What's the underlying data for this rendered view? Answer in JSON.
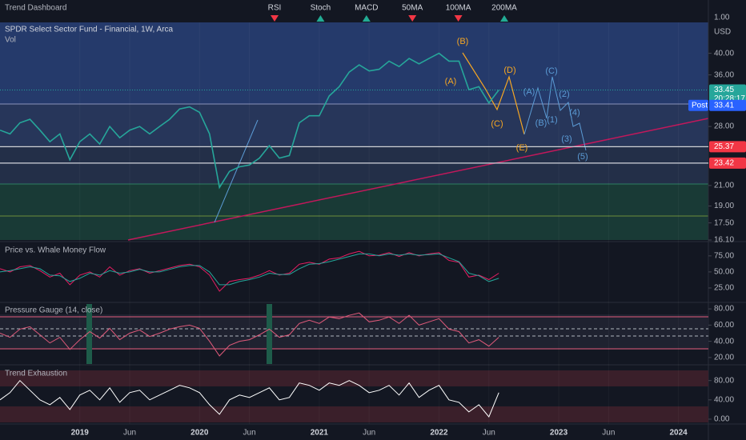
{
  "chart_data": {
    "type": "line",
    "dashboard": {
      "title": "Trend Dashboard",
      "scale": "1.00",
      "items": [
        {
          "label": "RSI",
          "color": "#f23645"
        },
        {
          "label": "Stoch",
          "color": "#22ab94"
        },
        {
          "label": "MACD",
          "color": "#22ab94"
        },
        {
          "label": "50MA",
          "color": "#f23645"
        },
        {
          "label": "100MA",
          "color": "#f23645"
        },
        {
          "label": "200MA",
          "color": "#22ab94"
        }
      ]
    },
    "title": "SPDR Select Sector Fund - Financial, 1W, Arca",
    "subtitle": "Vol",
    "currency": "USD",
    "x": [
      "2018-05",
      "2018-06",
      "2018-07",
      "2018-08",
      "2018-09",
      "2018-10",
      "2018-11",
      "2018-12",
      "2019-01",
      "2019-02",
      "2019-03",
      "2019-04",
      "2019-05",
      "2019-06",
      "2019-07",
      "2019-08",
      "2019-09",
      "2019-10",
      "2019-11",
      "2019-12",
      "2020-01",
      "2020-02",
      "2020-03",
      "2020-04",
      "2020-05",
      "2020-06",
      "2020-07",
      "2020-08",
      "2020-09",
      "2020-10",
      "2020-11",
      "2020-12",
      "2021-01",
      "2021-02",
      "2021-03",
      "2021-04",
      "2021-05",
      "2021-06",
      "2021-07",
      "2021-08",
      "2021-09",
      "2021-10",
      "2021-11",
      "2021-12",
      "2022-01",
      "2022-02",
      "2022-03",
      "2022-04",
      "2022-05",
      "2022-06",
      "2022-07"
    ],
    "xlim": [
      "2018-05",
      "2024-04"
    ],
    "xticks": [
      {
        "value": "2019-01",
        "label": "2019"
      },
      {
        "value": "2019-06",
        "label": "Jun"
      },
      {
        "value": "2020-01",
        "label": "2020"
      },
      {
        "value": "2020-06",
        "label": "Jun"
      },
      {
        "value": "2021-01",
        "label": "2021"
      },
      {
        "value": "2021-06",
        "label": "Jun"
      },
      {
        "value": "2022-01",
        "label": "2022"
      },
      {
        "value": "2022-06",
        "label": "Jun"
      },
      {
        "value": "2023-01",
        "label": "2023"
      },
      {
        "value": "2023-06",
        "label": "Jun"
      },
      {
        "value": "2024-01",
        "label": "2024"
      }
    ],
    "series": [
      {
        "color": "#26a69a",
        "values": [
          27.5,
          27,
          28.5,
          29,
          27.5,
          26,
          27,
          23.8,
          26,
          27,
          25.7,
          28,
          26.5,
          27.5,
          28,
          27,
          28,
          29,
          30.5,
          30.8,
          30,
          27,
          20.8,
          22.5,
          23,
          23.2,
          24,
          25.5,
          24,
          24.3,
          28.5,
          29.5,
          29.5,
          32.5,
          34,
          36.5,
          37.8,
          36.7,
          37,
          38.5,
          37.5,
          39,
          38,
          39,
          40,
          38.5,
          38.5,
          33.5,
          34,
          31.4,
          33.45
        ]
      }
    ],
    "log_scale": true,
    "ylim": [
      16.1,
      46.5
    ],
    "yticks": [
      {
        "value": 40,
        "label": "40.00"
      },
      {
        "value": 36,
        "label": "36.00"
      },
      {
        "value": 28,
        "label": "28.00"
      },
      {
        "value": 21,
        "label": "21.00"
      },
      {
        "value": 19,
        "label": "19.00"
      },
      {
        "value": 17.5,
        "label": "17.50"
      },
      {
        "value": 16.1,
        "label": "16.10"
      }
    ],
    "last_price": 33.45,
    "countdown": "20:28:17",
    "post": {
      "label": "Post",
      "value": 33.41
    },
    "levels": [
      {
        "value": 25.37,
        "color": "#f23645"
      },
      {
        "value": 23.42,
        "color": "#f23645"
      }
    ],
    "annotations": [
      {
        "text": "(B)",
        "color": "#f5a623"
      },
      {
        "text": "(A)",
        "color": "#f5a623"
      },
      {
        "text": "(D)",
        "color": "#f5a623"
      },
      {
        "text": "(C)",
        "color": "#f5a623"
      },
      {
        "text": "(E)",
        "color": "#f5a623"
      },
      {
        "text": "(A)",
        "color": "#5b9bd5"
      },
      {
        "text": "(C)",
        "color": "#5b9bd5"
      },
      {
        "text": "(2)",
        "color": "#5b9bd5"
      },
      {
        "text": "(B)",
        "color": "#5b9bd5"
      },
      {
        "text": "(1)",
        "color": "#5b9bd5"
      },
      {
        "text": "(4)",
        "color": "#5b9bd5"
      },
      {
        "text": "(3)",
        "color": "#5b9bd5"
      },
      {
        "text": "(5)",
        "color": "#5b9bd5"
      }
    ],
    "indicators": [
      {
        "title": "Price vs. Whale Money Flow",
        "ylim": [
          2.5,
          96
        ],
        "yticks": [
          {
            "value": 75,
            "label": "75.00"
          },
          {
            "value": 50,
            "label": "50.00"
          },
          {
            "value": 25,
            "label": "25.00"
          }
        ],
        "series": [
          {
            "color": "#e91e63",
            "values": [
              55,
              50,
              58,
              60,
              52,
              42,
              48,
              30,
              45,
              50,
              42,
              58,
              45,
              52,
              55,
              48,
              52,
              56,
              60,
              62,
              58,
              45,
              20,
              35,
              38,
              40,
              45,
              52,
              45,
              48,
              62,
              65,
              62,
              70,
              72,
              78,
              82,
              75,
              76,
              80,
              74,
              80,
              75,
              78,
              80,
              68,
              65,
              42,
              45,
              38,
              48
            ]
          },
          {
            "color": "#26a69a",
            "values": [
              50,
              52,
              55,
              58,
              55,
              45,
              44,
              35,
              40,
              48,
              45,
              52,
              48,
              50,
              54,
              50,
              50,
              54,
              58,
              60,
              60,
              50,
              30,
              30,
              35,
              38,
              42,
              48,
              46,
              46,
              55,
              62,
              63,
              66,
              70,
              74,
              78,
              78,
              75,
              78,
              76,
              78,
              76,
              77,
              78,
              72,
              66,
              48,
              44,
              35,
              40
            ]
          }
        ]
      },
      {
        "title": "Pressure Gauge (14, close)",
        "ylim": [
          12,
          88
        ],
        "yticks": [
          {
            "value": 80,
            "label": "80.00"
          },
          {
            "value": 60,
            "label": "60.00"
          },
          {
            "value": 40,
            "label": "40.00"
          },
          {
            "value": 20,
            "label": "20.00"
          }
        ],
        "series": [
          {
            "color": "#e05a7a",
            "values": [
              50,
              45,
              55,
              58,
              48,
              38,
              45,
              30,
              42,
              52,
              44,
              56,
              42,
              50,
              54,
              46,
              50,
              55,
              58,
              60,
              56,
              40,
              22,
              35,
              40,
              42,
              48,
              55,
              45,
              48,
              62,
              66,
              62,
              70,
              68,
              72,
              75,
              64,
              66,
              70,
              62,
              72,
              60,
              64,
              68,
              55,
              52,
              38,
              42,
              34,
              45
            ]
          }
        ]
      },
      {
        "title": "Trend Exhaustion",
        "ylim": [
          -10,
          111
        ],
        "yticks": [
          {
            "value": 80,
            "label": "80.00"
          },
          {
            "value": 40,
            "label": "40.00"
          },
          {
            "value": 0,
            "label": "0.00"
          }
        ],
        "series": [
          {
            "color": "#ffffff",
            "values": [
              40,
              55,
              80,
              60,
              40,
              30,
              45,
              20,
              50,
              60,
              40,
              65,
              35,
              55,
              60,
              40,
              50,
              60,
              70,
              65,
              55,
              30,
              10,
              40,
              50,
              45,
              55,
              65,
              40,
              45,
              75,
              70,
              60,
              75,
              70,
              80,
              70,
              55,
              60,
              70,
              50,
              75,
              45,
              60,
              70,
              40,
              35,
              15,
              30,
              5,
              55
            ]
          }
        ]
      }
    ]
  }
}
